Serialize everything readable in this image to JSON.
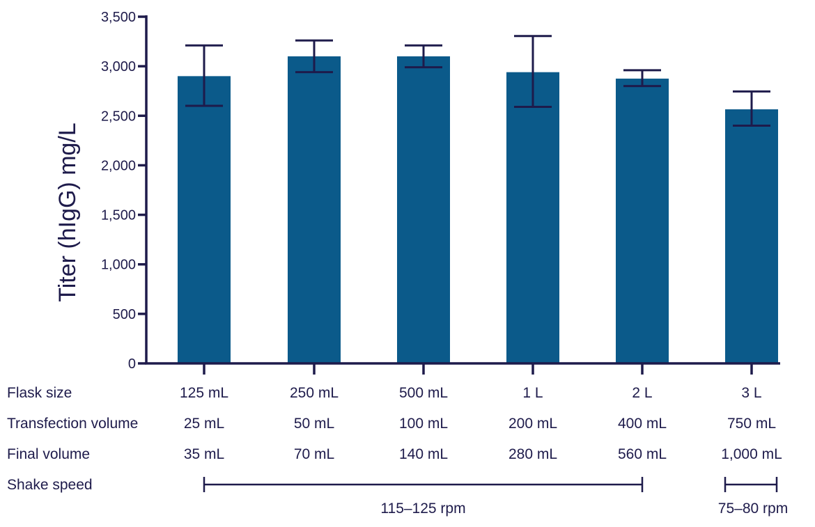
{
  "colors": {
    "bar": "#0b5a8a",
    "axis": "#1e1b4b",
    "text": "#1e1b4b"
  },
  "chart_data": {
    "type": "bar",
    "ylabel": "Titer (hIgG) mg/L",
    "ylim": [
      0,
      3500
    ],
    "yticks": [
      0,
      500,
      1000,
      1500,
      2000,
      2500,
      3000,
      3500
    ],
    "ytick_labels": [
      "0",
      "500",
      "1,000",
      "1,500",
      "2,000",
      "2,500",
      "3,000",
      "3,500"
    ],
    "categories": [
      "125 mL",
      "250 mL",
      "500 mL",
      "1 L",
      "2 L",
      "3 L"
    ],
    "values": [
      2900,
      3100,
      3100,
      2940,
      2875,
      2565
    ],
    "error_low": [
      2600,
      2940,
      2990,
      2590,
      2800,
      2400
    ],
    "error_high": [
      3210,
      3260,
      3210,
      3305,
      2960,
      2745
    ]
  },
  "table": {
    "rows": [
      {
        "label": "Flask size",
        "values": [
          "125 mL",
          "250 mL",
          "500 mL",
          "1 L",
          "2 L",
          "3 L"
        ]
      },
      {
        "label": "Transfection volume",
        "values": [
          "25 mL",
          "50 mL",
          "100 mL",
          "200 mL",
          "400 mL",
          "750 mL"
        ]
      },
      {
        "label": "Final volume",
        "values": [
          "35 mL",
          "70 mL",
          "140 mL",
          "280 mL",
          "560 mL",
          "1,000 mL"
        ]
      }
    ],
    "shake_speed_label": "Shake speed",
    "shake_speed_groups": [
      {
        "label": "115–125 rpm",
        "from": 0,
        "to": 4
      },
      {
        "label": "75–80 rpm",
        "from": 5,
        "to": 5
      }
    ]
  }
}
